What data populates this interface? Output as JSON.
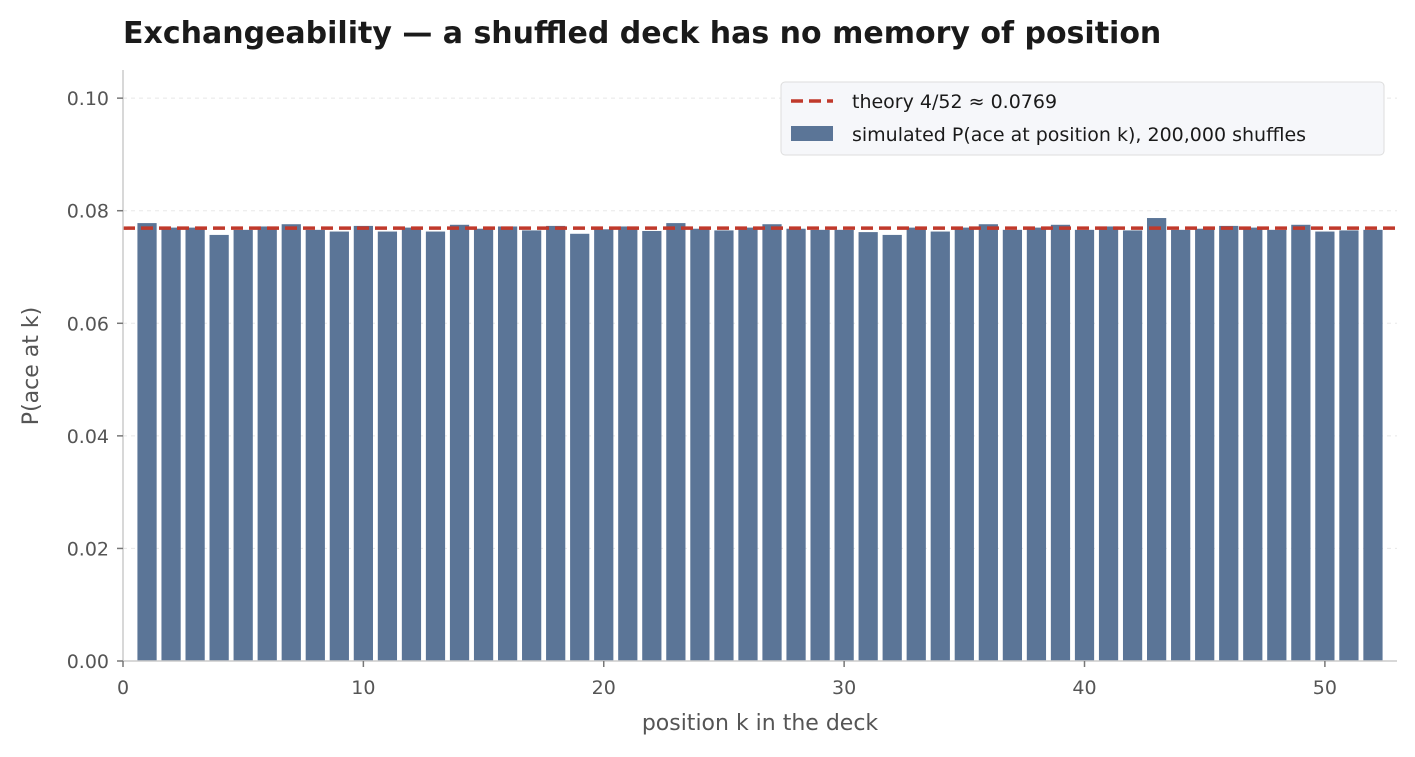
{
  "chart_data": {
    "type": "bar",
    "title": "Exchangeability — a shuffled deck has no memory of position",
    "xlabel": "position k in the deck",
    "ylabel": "P(ace at k)",
    "xlim": [
      0,
      53
    ],
    "ylim": [
      0,
      0.105
    ],
    "xticks": [
      0,
      10,
      20,
      30,
      40,
      50
    ],
    "yticks": [
      0.0,
      0.02,
      0.04,
      0.06,
      0.08,
      0.1
    ],
    "ytick_labels": [
      "0.00",
      "0.02",
      "0.04",
      "0.06",
      "0.08",
      "0.10"
    ],
    "grid": "horizontal",
    "legend_position": "top-right",
    "x": [
      1,
      2,
      3,
      4,
      5,
      6,
      7,
      8,
      9,
      10,
      11,
      12,
      13,
      14,
      15,
      16,
      17,
      18,
      19,
      20,
      21,
      22,
      23,
      24,
      25,
      26,
      27,
      28,
      29,
      30,
      31,
      32,
      33,
      34,
      35,
      36,
      37,
      38,
      39,
      40,
      41,
      42,
      43,
      44,
      45,
      46,
      47,
      48,
      49,
      50,
      51,
      52
    ],
    "series": [
      {
        "name": "simulated P(ace at position k), 200,000 shuffles",
        "kind": "bar",
        "color": "#5b7597",
        "values": [
          0.0778,
          0.077,
          0.077,
          0.0757,
          0.0766,
          0.0772,
          0.0776,
          0.0766,
          0.0763,
          0.0773,
          0.0763,
          0.077,
          0.0763,
          0.0775,
          0.0768,
          0.0772,
          0.0765,
          0.0773,
          0.0759,
          0.0767,
          0.0772,
          0.0764,
          0.0778,
          0.0768,
          0.0765,
          0.077,
          0.0776,
          0.0768,
          0.0766,
          0.0766,
          0.0762,
          0.0757,
          0.077,
          0.0763,
          0.077,
          0.0776,
          0.0766,
          0.077,
          0.0775,
          0.0766,
          0.0772,
          0.0765,
          0.0787,
          0.0766,
          0.0768,
          0.0773,
          0.077,
          0.0766,
          0.0775,
          0.0763,
          0.0765,
          0.0766
        ]
      }
    ],
    "reference_line": {
      "name": "theory 4/52 ≈ 0.0769",
      "value": 0.0769,
      "style": "dashed",
      "color": "#c0392b"
    }
  }
}
